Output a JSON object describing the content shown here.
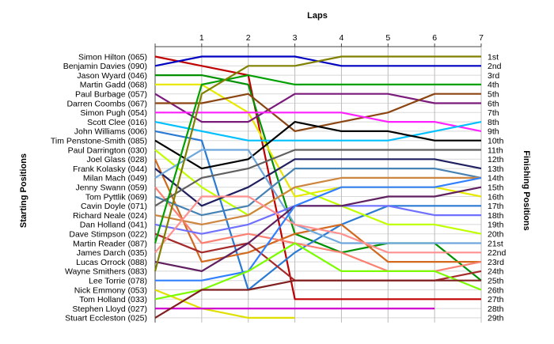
{
  "chart_data": {
    "type": "line",
    "title": "",
    "xlabel": "Laps",
    "ylabel_left": "Starting Positions",
    "ylabel_right": "Finishing Positions",
    "laps": [
      1,
      2,
      3,
      4,
      5,
      6,
      7
    ],
    "xlim": [
      0,
      7
    ],
    "ylim": [
      1,
      29
    ],
    "grid": true,
    "starting_order": [
      "Simon Hilton (065)",
      "Benjamin Davies (090)",
      "Jason Wyard (046)",
      "Martin Gadd (068)",
      "Paul Burbage (057)",
      "Darren Coombs (067)",
      "Simon Pugh (054)",
      "Scott Clee (016)",
      "John Williams (006)",
      "Tim Penstone-Smith (085)",
      "Paul Darrington (030)",
      "Joel Glass (028)",
      "Frank Kolasky (044)",
      "Milan Mach (049)",
      "Jenny Swann (059)",
      "Tom Pyttlik (069)",
      "Cavin Doyle (071)",
      "Richard Neale (024)",
      "Dan Holland (041)",
      "Dave Stimpson (022)",
      "Martin Reader (087)",
      "James Darch (035)",
      "Lucas Orrock (088)",
      "Wayne Smithers (083)",
      "Lee Torrie (078)",
      "Nick Emmony (053)",
      "Tom Holland (033)",
      "Stephen Lloyd (027)",
      "Stuart Eccleston (025)"
    ],
    "finishing_positions": [
      "1st",
      "2nd",
      "3rd",
      "4th",
      "5th",
      "6th",
      "7th",
      "8th",
      "9th",
      "10th",
      "11th",
      "12th",
      "13th",
      "14th",
      "15th",
      "16th",
      "17th",
      "18th",
      "19th",
      "20th",
      "21st",
      "22nd",
      "23rd",
      "24th",
      "25th",
      "26th",
      "27th",
      "28th",
      "29th"
    ],
    "series": [
      {
        "color": "#c00000",
        "positions": [
          1,
          2,
          3,
          27,
          27,
          27,
          27,
          27
        ]
      },
      {
        "color": "#0000c0",
        "positions": [
          2,
          1,
          1,
          1,
          2,
          2,
          2,
          2
        ]
      },
      {
        "color": "#009000",
        "positions": [
          3,
          3,
          4,
          20,
          22,
          21,
          21,
          25
        ]
      },
      {
        "color": "#e8e800",
        "positions": [
          4,
          4,
          7,
          16,
          15,
          15,
          15,
          16
        ]
      },
      {
        "color": "#7a1a7a",
        "positions": [
          5,
          8,
          8,
          5,
          5,
          5,
          6,
          6
        ]
      },
      {
        "color": "#8b4513",
        "positions": [
          6,
          6,
          5,
          9,
          8,
          7,
          5,
          5
        ]
      },
      {
        "color": "#ff20ff",
        "positions": [
          7,
          7,
          7,
          7,
          7,
          8,
          8,
          9
        ]
      },
      {
        "color": "#00c0ff",
        "positions": [
          8,
          9,
          10,
          10,
          10,
          10,
          9,
          8
        ]
      },
      {
        "color": "#2a7ad4",
        "positions": [
          9,
          10,
          26,
          22,
          19,
          17,
          17,
          17
        ]
      },
      {
        "color": "#000000",
        "positions": [
          10,
          13,
          12,
          8,
          9,
          9,
          10,
          10
        ]
      },
      {
        "color": "#c0ff00",
        "positions": [
          11,
          15,
          18,
          15,
          17,
          19,
          19,
          20
        ]
      },
      {
        "color": "#d2691e",
        "positions": [
          12,
          23,
          22,
          20,
          19,
          23,
          23,
          23
        ]
      },
      {
        "color": "#202060",
        "positions": [
          13,
          17,
          15,
          12,
          12,
          12,
          12,
          13
        ]
      },
      {
        "color": "#6fa8dc",
        "positions": [
          14,
          11,
          11,
          19,
          21,
          21,
          21,
          21
        ]
      },
      {
        "color": "#fa8072",
        "positions": [
          15,
          21,
          20,
          21,
          22,
          24,
          24,
          23
        ]
      },
      {
        "color": "#4682b4",
        "positions": [
          16,
          18,
          17,
          13,
          13,
          13,
          13,
          14
        ]
      },
      {
        "color": "#606060",
        "positions": [
          17,
          14,
          13,
          11,
          11,
          11,
          11,
          11
        ]
      },
      {
        "color": "#cd853f",
        "positions": [
          18,
          19,
          18,
          15,
          14,
          14,
          14,
          14
        ]
      },
      {
        "color": "#7070ff",
        "positions": [
          19,
          20,
          19,
          17,
          17,
          17,
          18,
          18
        ]
      },
      {
        "color": "#a52a2a",
        "positions": [
          20,
          22,
          21,
          25,
          25,
          25,
          25,
          24
        ]
      },
      {
        "color": "#00a000",
        "positions": [
          21,
          4,
          3,
          4,
          4,
          4,
          4,
          4
        ]
      },
      {
        "color": "#ff9090",
        "positions": [
          22,
          16,
          16,
          19,
          20,
          22,
          22,
          22
        ]
      },
      {
        "color": "#602060",
        "positions": [
          23,
          24,
          21,
          17,
          17,
          16,
          16,
          15
        ]
      },
      {
        "color": "#808000",
        "positions": [
          24,
          5,
          2,
          2,
          1,
          1,
          1,
          1
        ]
      },
      {
        "color": "#3080ff",
        "positions": [
          25,
          25,
          24,
          17,
          15,
          15,
          15,
          14
        ]
      },
      {
        "color": "#e0e000",
        "positions": [
          26,
          28,
          29,
          29
        ]
      },
      {
        "color": "#7cfc00",
        "positions": [
          27,
          26,
          24,
          21,
          24,
          24,
          24,
          26
        ]
      },
      {
        "color": "#d000d0",
        "positions": [
          28,
          28,
          28,
          28,
          28,
          28,
          28
        ]
      },
      {
        "color": "#802020",
        "positions": [
          29,
          26,
          26,
          25,
          25,
          25,
          25,
          25
        ]
      }
    ]
  }
}
